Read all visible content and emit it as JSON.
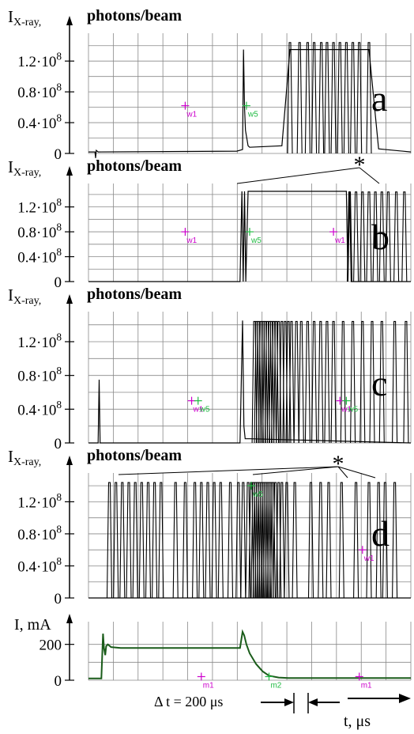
{
  "figure": {
    "ylabel_unit": "photons/beam",
    "time_step_label": "Δ t = 200 μs",
    "time_axis_label": "t, μs",
    "colors": {
      "trace": "#000000",
      "grid": "#888888",
      "marker_m": "#cc00cc",
      "marker_g": "#22bb44",
      "current_trace": "#1a5c1a"
    }
  },
  "chart_data": [
    {
      "id": "a",
      "type": "line",
      "panel_letter": "a",
      "ylabel": "I",
      "ylabel_sub": "X-ray,",
      "ylabel_unit": "photons/beam",
      "yticks": [
        "1.2·10^8",
        "0.8·10^8",
        "0.4·10^8",
        "0"
      ],
      "ytick_values": [
        1.2,
        0.8,
        0.4,
        0
      ],
      "ylim": [
        0,
        1.5
      ],
      "xlim": [
        0,
        1000
      ],
      "markers": [
        {
          "label": "w1",
          "x": 300,
          "y": 0.62,
          "color": "magenta"
        },
        {
          "label": "w5",
          "x": 490,
          "y": 0.62,
          "color": "green"
        }
      ],
      "series": [
        {
          "x": [
            0,
            20,
            22,
            24,
            30,
            460,
            478,
            481,
            484,
            487,
            495,
            500,
            600,
            625,
            655,
            680,
            700,
            722,
            740,
            760,
            780,
            800,
            820,
            840,
            870,
            900,
            1000
          ],
          "y": [
            0.02,
            0.02,
            -0.06,
            0.04,
            0.02,
            0.03,
            0.05,
            1.35,
            0.6,
            0.3,
            0.1,
            0.08,
            0.1,
            1.35,
            1.35,
            1.35,
            1.35,
            1.35,
            1.35,
            1.35,
            1.35,
            1.35,
            1.35,
            1.35,
            1.35,
            0.06,
            0.02
          ],
          "spikes_x": [
            625,
            655,
            680,
            700,
            722,
            740,
            760,
            780,
            800,
            820,
            840,
            870
          ]
        }
      ]
    },
    {
      "id": "b",
      "type": "line",
      "panel_letter": "b",
      "ylabel": "I",
      "ylabel_sub": "X-ray,",
      "ylabel_unit": "photons/beam",
      "yticks": [
        "1.2·10^8",
        "0.8·10^8",
        "0.4·10^8",
        "0"
      ],
      "ytick_values": [
        1.2,
        0.8,
        0.4,
        0
      ],
      "ylim": [
        0,
        1.5
      ],
      "xlim": [
        0,
        1000
      ],
      "annotation": "*",
      "markers": [
        {
          "label": "w1",
          "x": 300,
          "y": 0.8,
          "color": "magenta"
        },
        {
          "label": "w5",
          "x": 500,
          "y": 0.8,
          "color": "green"
        },
        {
          "label": "w1",
          "x": 760,
          "y": 0.8,
          "color": "magenta"
        }
      ],
      "series": [
        {
          "x": [
            0,
            470,
            476,
            480,
            484,
            488,
            495,
            500,
            520,
            525,
            800,
            805,
            810,
            815,
            1000
          ],
          "y": [
            0.0,
            0.0,
            1.45,
            0.0,
            1.45,
            0.0,
            1.45,
            1.45,
            1.45,
            1.45,
            1.45,
            0.0,
            1.45,
            0.0,
            0.0
          ],
          "spikes_x": [
            810,
            830,
            850,
            870,
            890,
            910,
            930,
            955,
            980
          ]
        }
      ]
    },
    {
      "id": "c",
      "type": "line",
      "panel_letter": "c",
      "ylabel": "I",
      "ylabel_sub": "X-ray,",
      "ylabel_unit": "photons/beam",
      "yticks": [
        "1.2·10^8",
        "0.8·10^8",
        "0.4·10^8",
        "0"
      ],
      "ytick_values": [
        1.2,
        0.8,
        0.4,
        0
      ],
      "ylim": [
        0,
        1.5
      ],
      "xlim": [
        0,
        1000
      ],
      "markers": [
        {
          "label": "w1",
          "x": 320,
          "y": 0.5,
          "color": "magenta"
        },
        {
          "label": "w5",
          "x": 340,
          "y": 0.5,
          "color": "green"
        },
        {
          "label": "w1",
          "x": 780,
          "y": 0.5,
          "color": "magenta"
        },
        {
          "label": "w5",
          "x": 800,
          "y": 0.5,
          "color": "green"
        }
      ],
      "series": [
        {
          "x": [
            0,
            30,
            33,
            36,
            470,
            478,
            482,
            486,
            500,
            1000
          ],
          "y": [
            0.0,
            0.0,
            0.75,
            0.0,
            0.0,
            1.45,
            0.2,
            0.05,
            0.05,
            0.0
          ],
          "spikes_x": [
            515,
            522,
            528,
            535,
            542,
            548,
            555,
            562,
            568,
            575,
            582,
            590,
            600,
            610,
            620,
            630,
            645,
            660,
            680,
            700,
            720,
            740,
            760,
            790,
            820,
            850,
            880,
            910,
            950,
            985
          ]
        }
      ]
    },
    {
      "id": "d",
      "type": "line",
      "panel_letter": "d",
      "ylabel": "I",
      "ylabel_sub": "X-ray,",
      "ylabel_unit": "photons/beam",
      "yticks": [
        "1.2·10^8",
        "0.8·10^8",
        "0.4·10^8",
        "0"
      ],
      "ytick_values": [
        1.2,
        0.8,
        0.4,
        0
      ],
      "ylim": [
        0,
        1.5
      ],
      "xlim": [
        0,
        1000
      ],
      "annotation": "*",
      "markers": [
        {
          "label": "w5",
          "x": 505,
          "y": 1.4,
          "color": "green"
        },
        {
          "label": "w1",
          "x": 850,
          "y": 0.6,
          "color": "magenta"
        }
      ],
      "series": [
        {
          "x": [
            0,
            60,
            1000
          ],
          "y": [
            0.0,
            0.0,
            0.0
          ],
          "spikes_x": [
            65,
            85,
            105,
            125,
            145,
            165,
            185,
            205,
            225,
            270,
            300,
            330,
            350,
            370,
            390,
            410,
            440,
            465,
            480,
            495,
            505,
            512,
            518,
            524,
            530,
            536,
            542,
            548,
            554,
            560,
            566,
            572,
            580,
            590,
            600,
            615,
            640,
            690,
            720,
            745,
            785,
            830,
            870,
            900,
            920,
            950
          ]
        }
      ]
    },
    {
      "id": "current",
      "type": "line",
      "ylabel": "I, mA",
      "yticks": [
        "200",
        "0"
      ],
      "ytick_values": [
        200,
        0
      ],
      "ylim": [
        0,
        300
      ],
      "xlim": [
        0,
        1000
      ],
      "markers": [
        {
          "label": "m1",
          "x": 350,
          "y": 20,
          "color": "magenta"
        },
        {
          "label": "m2",
          "x": 560,
          "y": 20,
          "color": "green"
        },
        {
          "label": "m1",
          "x": 840,
          "y": 20,
          "color": "magenta"
        }
      ],
      "series": [
        {
          "x": [
            0,
            40,
            45,
            48,
            52,
            55,
            60,
            70,
            100,
            470,
            478,
            483,
            490,
            500,
            520,
            540,
            560,
            590,
            620,
            700,
            1000
          ],
          "y": [
            10,
            10,
            260,
            180,
            140,
            190,
            200,
            185,
            180,
            180,
            270,
            250,
            200,
            150,
            90,
            50,
            25,
            15,
            12,
            12,
            12
          ]
        }
      ]
    }
  ]
}
